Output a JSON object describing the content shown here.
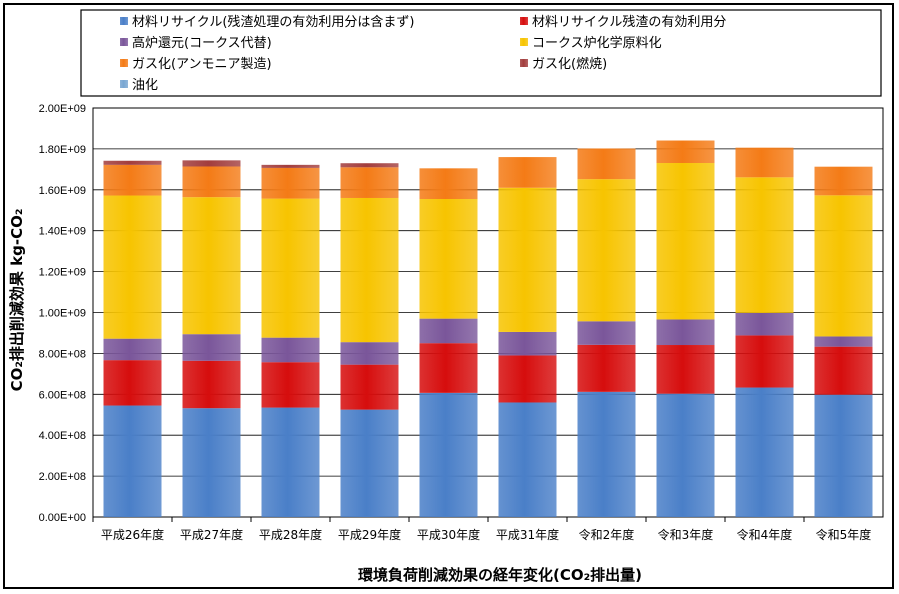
{
  "chart_data": {
    "type": "bar",
    "stacked": true,
    "xlabel": "環境負荷削減効果の経年変化(CO₂排出量)",
    "ylabel": "CO₂排出削減効果 kg-CO₂",
    "ylim": [
      0,
      2000000000
    ],
    "yticks": [
      "0.00E+00",
      "2.00E+08",
      "4.00E+08",
      "6.00E+08",
      "8.00E+08",
      "1.00E+09",
      "1.20E+09",
      "1.40E+09",
      "1.60E+09",
      "1.80E+09",
      "2.00E+09"
    ],
    "grid": true,
    "legend_position": "top",
    "categories": [
      "平成26年度",
      "平成27年度",
      "平成28年度",
      "平成29年度",
      "平成30年度",
      "平成31年度",
      "令和2年度",
      "令和3年度",
      "令和4年度",
      "令和5年度"
    ],
    "series": [
      {
        "name": "材料リサイクル(残渣処理の有効利用分は含まず)",
        "color": "#4a7fc8",
        "values": [
          545000000,
          532000000,
          535000000,
          525000000,
          607000000,
          560000000,
          612000000,
          603000000,
          633000000,
          598000000
        ]
      },
      {
        "name": "材料リサイクル残渣の有効利用分",
        "color": "#d60d0d",
        "values": [
          222000000,
          232000000,
          222000000,
          220000000,
          243000000,
          230000000,
          230000000,
          238000000,
          255000000,
          235000000
        ]
      },
      {
        "name": "高炉還元(コークス代替)",
        "color": "#7a569a",
        "values": [
          105000000,
          130000000,
          120000000,
          110000000,
          120000000,
          115000000,
          115000000,
          125000000,
          110000000,
          50000000
        ]
      },
      {
        "name": "コークス炉化学原料化",
        "color": "#f7c400",
        "values": [
          700000000,
          670000000,
          680000000,
          705000000,
          585000000,
          705000000,
          695000000,
          765000000,
          663000000,
          690000000
        ]
      },
      {
        "name": "ガス化(アンモニア製造)",
        "color": "#f47b16",
        "values": [
          150000000,
          150000000,
          150000000,
          150000000,
          150000000,
          150000000,
          150000000,
          110000000,
          145000000,
          140000000
        ]
      },
      {
        "name": "ガス化(燃焼)",
        "color": "#a23d3d",
        "values": [
          20000000,
          30000000,
          15000000,
          20000000,
          0,
          0,
          0,
          0,
          0,
          0
        ]
      },
      {
        "name": "油化",
        "color": "#79a6d2",
        "values": [
          0,
          0,
          0,
          0,
          0,
          0,
          0,
          0,
          0,
          0
        ]
      }
    ]
  }
}
